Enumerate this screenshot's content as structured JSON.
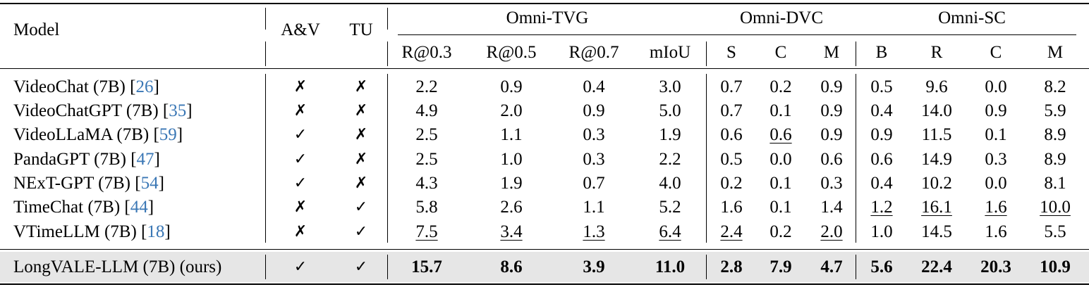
{
  "table": {
    "header": {
      "model": "Model",
      "av": "A&V",
      "tu": "TU",
      "groups": [
        {
          "label": "Omni-TVG",
          "cols": [
            "R@0.3",
            "R@0.5",
            "R@0.7",
            "mIoU"
          ]
        },
        {
          "label": "Omni-DVC",
          "cols": [
            "S",
            "C",
            "M"
          ]
        },
        {
          "label": "Omni-SC",
          "cols": [
            "B",
            "R",
            "C",
            "M"
          ]
        }
      ]
    },
    "rows": [
      {
        "model": "VideoChat (7B) [",
        "ref": "26",
        "close": "]",
        "av": "✗",
        "tu": "✗",
        "vals": [
          "2.2",
          "0.9",
          "0.4",
          "3.0",
          "0.7",
          "0.2",
          "0.9",
          "0.5",
          "9.6",
          "0.0",
          "8.2"
        ]
      },
      {
        "model": "VideoChatGPT (7B) [",
        "ref": "35",
        "close": "]",
        "av": "✗",
        "tu": "✗",
        "vals": [
          "4.9",
          "2.0",
          "0.9",
          "5.0",
          "0.7",
          "0.1",
          "0.9",
          "0.4",
          "14.0",
          "0.9",
          "5.9"
        ]
      },
      {
        "model": "VideoLLaMA (7B) [",
        "ref": "59",
        "close": "]",
        "av": "✓",
        "tu": "✗",
        "vals": [
          "2.5",
          "1.1",
          "0.3",
          "1.9",
          "0.6",
          "0.6",
          "0.9",
          "0.9",
          "11.5",
          "0.1",
          "8.9"
        ]
      },
      {
        "model": "PandaGPT (7B) [",
        "ref": "47",
        "close": "]",
        "av": "✓",
        "tu": "✗",
        "vals": [
          "2.5",
          "1.0",
          "0.3",
          "2.2",
          "0.5",
          "0.0",
          "0.6",
          "0.6",
          "14.9",
          "0.3",
          "8.9"
        ]
      },
      {
        "model": "NExT-GPT (7B) [",
        "ref": "54",
        "close": "]",
        "av": "✓",
        "tu": "✗",
        "vals": [
          "4.3",
          "1.9",
          "0.7",
          "4.0",
          "0.2",
          "0.1",
          "0.3",
          "0.4",
          "10.2",
          "0.0",
          "8.1"
        ]
      },
      {
        "model": "TimeChat (7B) [",
        "ref": "44",
        "close": "]",
        "av": "✗",
        "tu": "✓",
        "vals": [
          "5.8",
          "2.6",
          "1.1",
          "5.2",
          "1.6",
          "0.1",
          "1.4",
          "1.2",
          "16.1",
          "1.6",
          "10.0"
        ]
      },
      {
        "model": "VTimeLLM (7B) [",
        "ref": "18",
        "close": "]",
        "av": "✗",
        "tu": "✓",
        "vals": [
          "7.5",
          "3.4",
          "1.3",
          "6.4",
          "2.4",
          "0.2",
          "2.0",
          "1.0",
          "14.5",
          "1.6",
          "5.5"
        ]
      }
    ],
    "ours": {
      "model": "LongVALE-LLM (7B) (ours)",
      "av": "✓",
      "tu": "✓",
      "vals": [
        "15.7",
        "8.6",
        "3.9",
        "11.0",
        "2.8",
        "7.9",
        "4.7",
        "5.6",
        "22.4",
        "20.3",
        "10.9"
      ]
    },
    "underlined": [
      [
        2,
        5
      ],
      [
        5,
        7
      ],
      [
        5,
        8
      ],
      [
        5,
        9
      ],
      [
        5,
        10
      ],
      [
        6,
        0
      ],
      [
        6,
        1
      ],
      [
        6,
        2
      ],
      [
        6,
        3
      ],
      [
        6,
        4
      ],
      [
        6,
        6
      ]
    ],
    "colors": {
      "ref": "#3a77b5",
      "highlight": "#e6e6e6"
    }
  }
}
